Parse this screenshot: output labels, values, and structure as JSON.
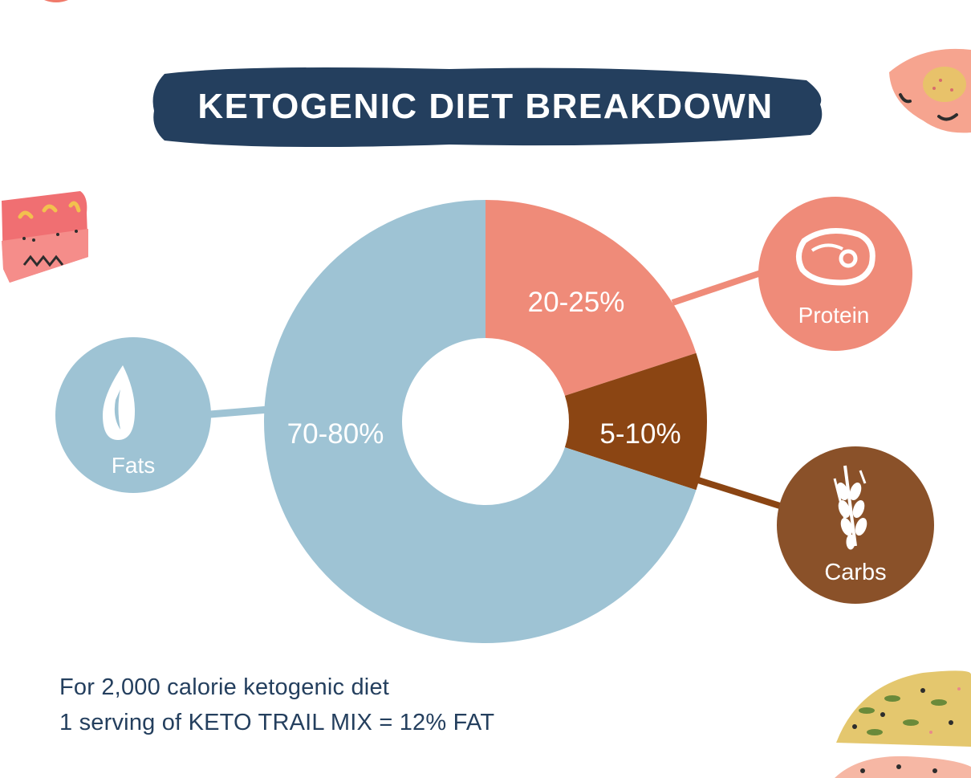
{
  "chart_data": {
    "type": "pie",
    "title": "KETOGENIC DIET BREAKDOWN",
    "slices": [
      {
        "name": "Protein",
        "label": "20-25%",
        "value": 20,
        "color": "#ef8b79",
        "icon": "steak-icon"
      },
      {
        "name": "Carbs",
        "label": "5-10%",
        "value": 10,
        "color": "#8b4513",
        "icon": "wheat-icon"
      },
      {
        "name": "Fats",
        "label": "70-80%",
        "value": 70,
        "color": "#9ec3d4",
        "icon": "water-drop-icon"
      }
    ]
  },
  "colors": {
    "title_banner": "#243f5e",
    "protein": "#ef8b79",
    "carbs": "#8b4513",
    "carbs_badge": "#8a5129",
    "fats": "#9ec3d4",
    "text_dark": "#243f5e",
    "text_light": "#ffffff"
  },
  "notes": {
    "line1": "For 2,000 calorie ketogenic diet",
    "line2": "1 serving of KETO TRAIL MIX = 12% FAT"
  }
}
